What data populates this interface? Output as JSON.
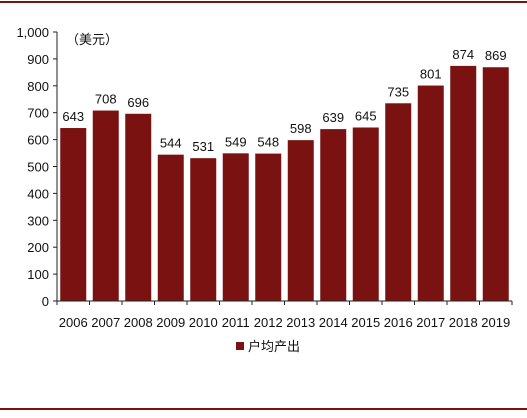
{
  "chart_data": {
    "type": "bar",
    "unit_label": "（美元）",
    "categories": [
      "2006",
      "2007",
      "2008",
      "2009",
      "2010",
      "2011",
      "2012",
      "2013",
      "2014",
      "2015",
      "2016",
      "2017",
      "2018",
      "2019"
    ],
    "series": [
      {
        "name": "户均产出",
        "values": [
          643,
          708,
          696,
          544,
          531,
          549,
          548,
          598,
          639,
          645,
          735,
          801,
          874,
          869
        ],
        "color": "#7a1212"
      }
    ],
    "y_ticks": [
      "0",
      "100",
      "200",
      "300",
      "400",
      "500",
      "600",
      "700",
      "800",
      "900",
      "1,000"
    ],
    "ylim": [
      0,
      1000
    ],
    "grid": false,
    "legend_position": "bottom-center",
    "frame_line_color": "#7a1212"
  }
}
